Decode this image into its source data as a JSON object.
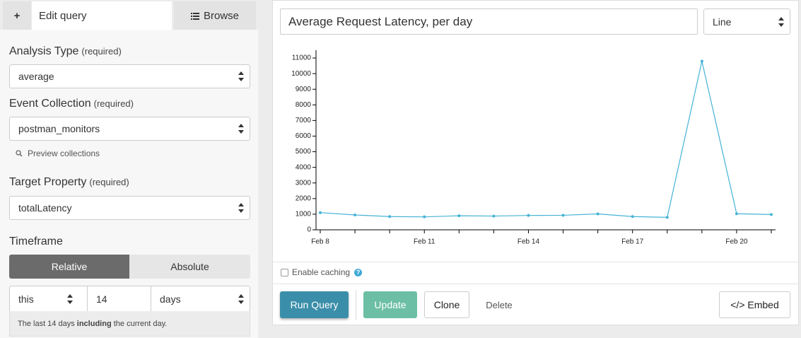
{
  "tabs": {
    "add": "+",
    "edit": "Edit query",
    "browse": "Browse"
  },
  "fields": [
    {
      "label": "Analysis Type",
      "required": "(required)",
      "value": "average"
    },
    {
      "label": "Event Collection",
      "required": "(required)",
      "value": "postman_monitors"
    },
    {
      "label": "Target Property",
      "required": "(required)",
      "value": "totalLatency"
    }
  ],
  "preview_link": "Preview collections",
  "timeframe": {
    "label": "Timeframe",
    "modes": [
      "Relative",
      "Absolute"
    ],
    "relativity": "this",
    "amount": "14",
    "unit": "days",
    "note": [
      "The last 14 days ",
      "including",
      " the current day."
    ]
  },
  "query_title": "Average Request Latency, per day",
  "chart_type_select": "Line",
  "caching": {
    "label": "Enable caching",
    "help": "?"
  },
  "buttons": {
    "run": "Run Query",
    "update": "Update",
    "clone": "Clone",
    "delete": "Delete",
    "embed": "</> Embed"
  },
  "chart_data": {
    "type": "line",
    "categories": [
      "Feb 8",
      null,
      null,
      "Feb 11",
      null,
      null,
      "Feb 14",
      null,
      null,
      "Feb 17",
      null,
      null,
      "Feb 20",
      null
    ],
    "series": [
      {
        "name": "Average Request Latency",
        "color": "#45b3d6",
        "values": [
          1100,
          950,
          850,
          830,
          900,
          880,
          920,
          930,
          1020,
          850,
          800,
          10800,
          1030,
          980
        ]
      }
    ],
    "ylim": [
      0,
      11500
    ],
    "yticks": [
      0,
      1000,
      2000,
      3000,
      4000,
      5000,
      6000,
      7000,
      8000,
      9000,
      10000,
      11000
    ]
  }
}
